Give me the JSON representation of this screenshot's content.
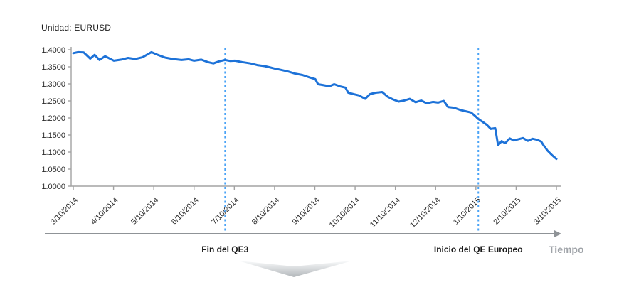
{
  "header": {
    "unit_label": "Unidad: EURUSD"
  },
  "footer": {
    "x_axis_label": "Tiempo"
  },
  "chart_data": {
    "type": "line",
    "title": "Unidad: EURUSD",
    "xlabel": "Tiempo",
    "ylabel": "EURUSD",
    "ylim": [
      1.0,
      1.4
    ],
    "x_range_months": [
      0,
      12
    ],
    "grid": false,
    "legend": "none",
    "line_color": "#1d72d8",
    "event_line_color": "#4aa3f6",
    "axis_color": "#a3a3a3",
    "arrow_color": "#8f9397",
    "y_ticks": [
      "1.4000",
      "1.3500",
      "1.3000",
      "1.2500",
      "1.2000",
      "1.1500",
      "1.1000",
      "1.0500",
      "1.0000"
    ],
    "x_ticks": [
      "3/10/2014",
      "4/10/2014",
      "5/10/2014",
      "6/10/2014",
      "7/10/2014",
      "8/10/2014",
      "9/10/2014",
      "10/10/2014",
      "11/10/2014",
      "12/10/2014",
      "1/10/2015",
      "2/10/2015",
      "3/10/2015"
    ],
    "events": [
      {
        "label": "Fin del QE3",
        "x_month": 3.77
      },
      {
        "label": "Inicio del QE Europeo",
        "x_month": 10.06
      }
    ],
    "series": [
      {
        "name": "EURUSD",
        "points": [
          [
            0,
            1.39
          ],
          [
            0.12,
            1.393
          ],
          [
            0.26,
            1.392
          ],
          [
            0.42,
            1.374
          ],
          [
            0.53,
            1.385
          ],
          [
            0.65,
            1.37
          ],
          [
            0.79,
            1.381
          ],
          [
            1.01,
            1.368
          ],
          [
            1.19,
            1.371
          ],
          [
            1.36,
            1.376
          ],
          [
            1.54,
            1.373
          ],
          [
            1.72,
            1.378
          ],
          [
            1.94,
            1.393
          ],
          [
            2.1,
            1.385
          ],
          [
            2.28,
            1.377
          ],
          [
            2.47,
            1.373
          ],
          [
            2.69,
            1.37
          ],
          [
            2.87,
            1.372
          ],
          [
            3.0,
            1.368
          ],
          [
            3.18,
            1.371
          ],
          [
            3.34,
            1.364
          ],
          [
            3.48,
            1.36
          ],
          [
            3.62,
            1.366
          ],
          [
            3.77,
            1.37
          ],
          [
            3.9,
            1.367
          ],
          [
            4.01,
            1.368
          ],
          [
            4.19,
            1.364
          ],
          [
            4.4,
            1.36
          ],
          [
            4.57,
            1.355
          ],
          [
            4.75,
            1.352
          ],
          [
            4.9,
            1.348
          ],
          [
            5.0,
            1.345
          ],
          [
            5.16,
            1.341
          ],
          [
            5.34,
            1.336
          ],
          [
            5.51,
            1.33
          ],
          [
            5.69,
            1.326
          ],
          [
            5.87,
            1.319
          ],
          [
            6.01,
            1.314
          ],
          [
            6.08,
            1.299
          ],
          [
            6.22,
            1.296
          ],
          [
            6.36,
            1.293
          ],
          [
            6.48,
            1.299
          ],
          [
            6.62,
            1.293
          ],
          [
            6.76,
            1.289
          ],
          [
            6.83,
            1.274
          ],
          [
            6.96,
            1.27
          ],
          [
            7.1,
            1.266
          ],
          [
            7.25,
            1.256
          ],
          [
            7.37,
            1.27
          ],
          [
            7.51,
            1.274
          ],
          [
            7.67,
            1.276
          ],
          [
            7.81,
            1.262
          ],
          [
            7.93,
            1.255
          ],
          [
            8.08,
            1.248
          ],
          [
            8.22,
            1.251
          ],
          [
            8.36,
            1.256
          ],
          [
            8.5,
            1.246
          ],
          [
            8.64,
            1.251
          ],
          [
            8.78,
            1.243
          ],
          [
            8.93,
            1.247
          ],
          [
            9.06,
            1.245
          ],
          [
            9.2,
            1.25
          ],
          [
            9.31,
            1.232
          ],
          [
            9.46,
            1.23
          ],
          [
            9.6,
            1.224
          ],
          [
            9.73,
            1.22
          ],
          [
            9.88,
            1.216
          ],
          [
            9.98,
            1.206
          ],
          [
            10.06,
            1.197
          ],
          [
            10.16,
            1.189
          ],
          [
            10.27,
            1.18
          ],
          [
            10.37,
            1.168
          ],
          [
            10.48,
            1.17
          ],
          [
            10.55,
            1.12
          ],
          [
            10.64,
            1.132
          ],
          [
            10.73,
            1.126
          ],
          [
            10.84,
            1.14
          ],
          [
            10.94,
            1.134
          ],
          [
            11.04,
            1.137
          ],
          [
            11.17,
            1.141
          ],
          [
            11.29,
            1.133
          ],
          [
            11.41,
            1.139
          ],
          [
            11.52,
            1.136
          ],
          [
            11.62,
            1.131
          ],
          [
            11.68,
            1.12
          ],
          [
            11.78,
            1.104
          ],
          [
            11.89,
            1.091
          ],
          [
            11.96,
            1.084
          ],
          [
            12,
            1.08
          ]
        ]
      }
    ]
  }
}
